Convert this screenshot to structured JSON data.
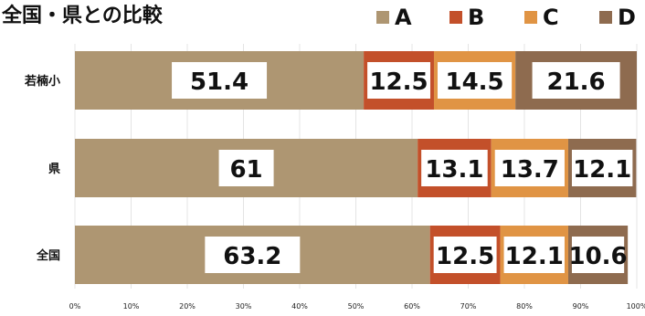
{
  "chart_data": {
    "type": "bar",
    "orientation": "horizontal",
    "stacked": true,
    "percent": true,
    "title": "全国・県との比較",
    "categories": [
      "若楠小",
      "県",
      "全国"
    ],
    "series": [
      {
        "name": "A",
        "color": "#ae9672",
        "values": [
          51.4,
          61,
          63.2
        ]
      },
      {
        "name": "B",
        "color": "#c3502a",
        "values": [
          12.5,
          13.1,
          12.5
        ]
      },
      {
        "name": "C",
        "color": "#e09444",
        "values": [
          14.5,
          13.7,
          12.1
        ]
      },
      {
        "name": "D",
        "color": "#8e6b4f",
        "values": [
          21.6,
          12.1,
          10.6
        ]
      }
    ],
    "data_labels": [
      [
        "51.4",
        "12.5",
        "14.5",
        "21.6"
      ],
      [
        "61",
        "13.1",
        "13.7",
        "12.1"
      ],
      [
        "63.2",
        "12.5",
        "12.1",
        "10.6"
      ]
    ],
    "xlim": [
      0,
      100
    ],
    "x_ticks": [
      "0%",
      "10%",
      "20%",
      "30%",
      "40%",
      "50%",
      "60%",
      "70%",
      "80%",
      "90%",
      "100%"
    ],
    "grid": true,
    "legend_position": "top-right"
  }
}
